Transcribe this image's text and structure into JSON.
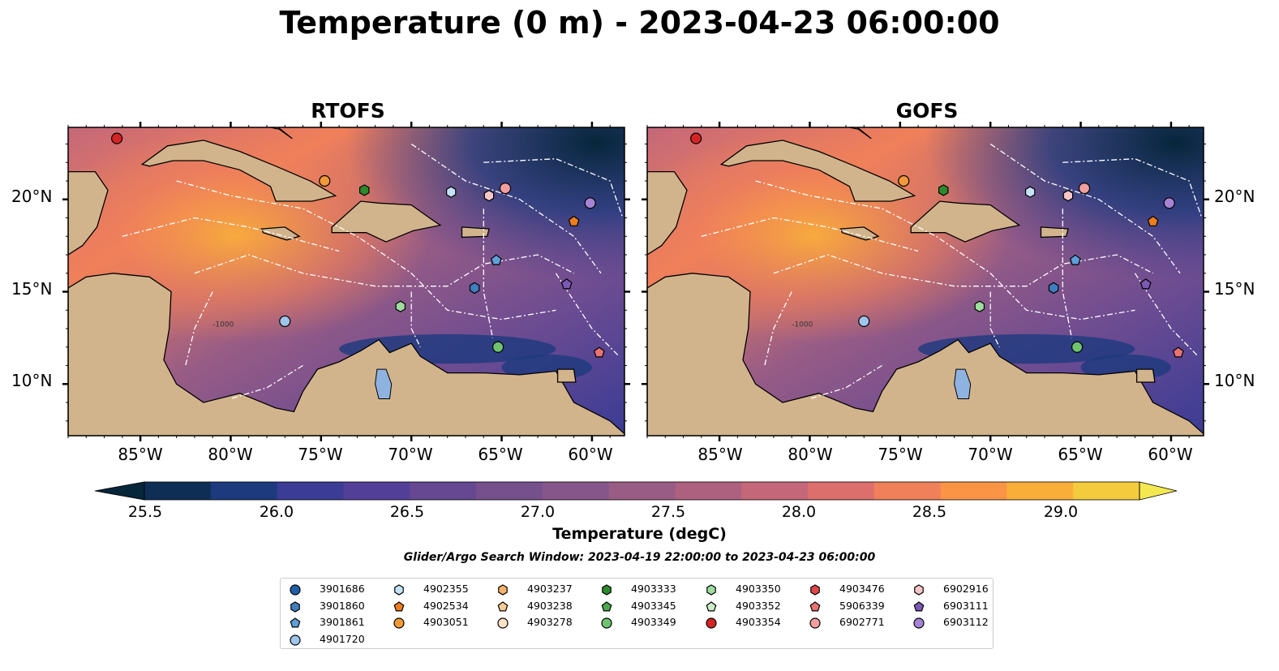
{
  "title": "Temperature (0 m) - 2023-04-23 06:00:00",
  "panels": [
    {
      "title": "RTOFS"
    },
    {
      "title": "GOFS"
    }
  ],
  "lat_labels": [
    "20°N",
    "15°N",
    "10°N"
  ],
  "lon_labels": [
    "85°W",
    "80°W",
    "75°W",
    "70°W",
    "65°W",
    "60°W"
  ],
  "colorbar": {
    "ticks": [
      "25.5",
      "26.0",
      "26.5",
      "27.0",
      "27.5",
      "28.0",
      "28.5",
      "29.0"
    ],
    "label": "Temperature (degC)",
    "range": [
      25.5,
      29.25
    ],
    "colors": [
      "#06263a",
      "#0f2e56",
      "#1d3a7e",
      "#3a3c95",
      "#523f98",
      "#654792",
      "#764f8d",
      "#86568a",
      "#985c85",
      "#ad617e",
      "#c46879",
      "#dc6f6b",
      "#f0805a",
      "#fb9444",
      "#f9ae3a",
      "#f4cb3c",
      "#f3e84f"
    ]
  },
  "contour_label": "-1000",
  "search_window": "Glider/Argo Search Window: 2023-04-19 22:00:00 to 2023-04-23 06:00:00",
  "legend": [
    {
      "label": "3901686",
      "marker": "circle",
      "color": "#1f5fa8"
    },
    {
      "label": "3901860",
      "marker": "hexagon",
      "color": "#3f7fc0"
    },
    {
      "label": "3901861",
      "marker": "pentagon",
      "color": "#5f9fd8"
    },
    {
      "label": "4901720",
      "marker": "circle",
      "color": "#9ec5ec"
    },
    {
      "label": "4902355",
      "marker": "hexagon",
      "color": "#c6e2f7"
    },
    {
      "label": "4902534",
      "marker": "pentagon",
      "color": "#ee7d1e"
    },
    {
      "label": "4903051",
      "marker": "circle",
      "color": "#f29a3a"
    },
    {
      "label": "4903237",
      "marker": "hexagon",
      "color": "#f7b36a"
    },
    {
      "label": "4903238",
      "marker": "pentagon",
      "color": "#fbcb98"
    },
    {
      "label": "4903278",
      "marker": "circle",
      "color": "#fde2c6"
    },
    {
      "label": "4903333",
      "marker": "hexagon",
      "color": "#2c8a2c"
    },
    {
      "label": "4903345",
      "marker": "pentagon",
      "color": "#4ea84e"
    },
    {
      "label": "4903349",
      "marker": "circle",
      "color": "#6fc36f"
    },
    {
      "label": "4903350",
      "marker": "hexagon",
      "color": "#9fdc9f"
    },
    {
      "label": "4903352",
      "marker": "pentagon",
      "color": "#cdeec6"
    },
    {
      "label": "4903354",
      "marker": "circle",
      "color": "#d42424"
    },
    {
      "label": "4903476",
      "marker": "hexagon",
      "color": "#e04848"
    },
    {
      "label": "5906339",
      "marker": "pentagon",
      "color": "#ea7272"
    },
    {
      "label": "6902771",
      "marker": "circle",
      "color": "#f29e9e"
    },
    {
      "label": "6902916",
      "marker": "hexagon",
      "color": "#f7c7c7"
    },
    {
      "label": "6903111",
      "marker": "pentagon",
      "color": "#7b59b3"
    },
    {
      "label": "6903112",
      "marker": "circle",
      "color": "#a783d4"
    }
  ],
  "markers": [
    {
      "label": "4903354",
      "lon": -86.3,
      "lat": 23.3
    },
    {
      "label": "4903051",
      "lon": -74.8,
      "lat": 21.0
    },
    {
      "label": "4903333",
      "lon": -72.6,
      "lat": 20.5
    },
    {
      "label": "4902355",
      "lon": -67.8,
      "lat": 20.4
    },
    {
      "label": "6902916",
      "lon": -65.7,
      "lat": 20.2
    },
    {
      "label": "6902771",
      "lon": -64.8,
      "lat": 20.6
    },
    {
      "label": "6903112",
      "lon": -60.1,
      "lat": 19.8
    },
    {
      "label": "4902534",
      "lon": -61.0,
      "lat": 18.8
    },
    {
      "label": "3901861",
      "lon": -65.3,
      "lat": 16.7
    },
    {
      "label": "3901860",
      "lon": -66.5,
      "lat": 15.2
    },
    {
      "label": "6903111",
      "lon": -61.4,
      "lat": 15.4
    },
    {
      "label": "4903350",
      "lon": -70.6,
      "lat": 14.2
    },
    {
      "label": "4901720",
      "lon": -77.0,
      "lat": 13.4
    },
    {
      "label": "4903349",
      "lon": -65.2,
      "lat": 12.0
    },
    {
      "label": "5906339",
      "lon": -59.6,
      "lat": 11.7
    }
  ]
}
